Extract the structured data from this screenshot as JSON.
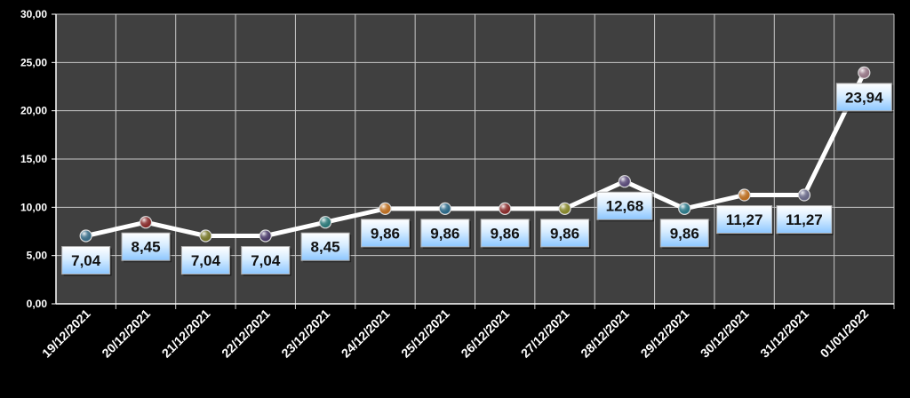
{
  "chart_data": {
    "type": "line",
    "title": "",
    "xlabel": "",
    "ylabel": "",
    "categories": [
      "19/12/2021",
      "20/12/2021",
      "21/12/2021",
      "22/12/2021",
      "23/12/2021",
      "24/12/2021",
      "25/12/2021",
      "26/12/2021",
      "27/12/2021",
      "28/12/2021",
      "29/12/2021",
      "30/12/2021",
      "31/12/2021",
      "01/01/2022"
    ],
    "series": [
      {
        "values": [
          7.04,
          8.45,
          7.04,
          7.04,
          8.45,
          9.86,
          9.86,
          9.86,
          9.86,
          12.68,
          9.86,
          11.27,
          11.27,
          23.94
        ],
        "labels": [
          "7,04",
          "8,45",
          "7,04",
          "7,04",
          "8,45",
          "9,86",
          "9,86",
          "9,86",
          "9,86",
          "12,68",
          "9,86",
          "11,27",
          "11,27",
          "23,94"
        ],
        "label_positions": [
          "below",
          "below",
          "below",
          "below",
          "below",
          "below",
          "below",
          "below",
          "below",
          "below",
          "below",
          "below",
          "below",
          "below"
        ],
        "line_color": "#ffffff",
        "marker_colors": [
          "#3a6e8a",
          "#8a2a2a",
          "#7a7a2a",
          "#4a3a6a",
          "#2a7a7a",
          "#c07020",
          "#2a6a8a",
          "#8a2a2a",
          "#8a8a2a",
          "#5a4a7a",
          "#2a7a8a",
          "#c07020",
          "#6a6a8a",
          "#9a7a8a"
        ]
      }
    ],
    "y_ticks": [
      "0,00",
      "5,00",
      "10,00",
      "15,00",
      "20,00",
      "25,00",
      "30,00"
    ],
    "ylim": [
      0,
      30
    ],
    "grid": true,
    "legend": "none",
    "plot_background": "#404040",
    "page_background": "#000000",
    "gridline_color": "#c8c8c8",
    "label_box_color": "#a8d4ff"
  }
}
